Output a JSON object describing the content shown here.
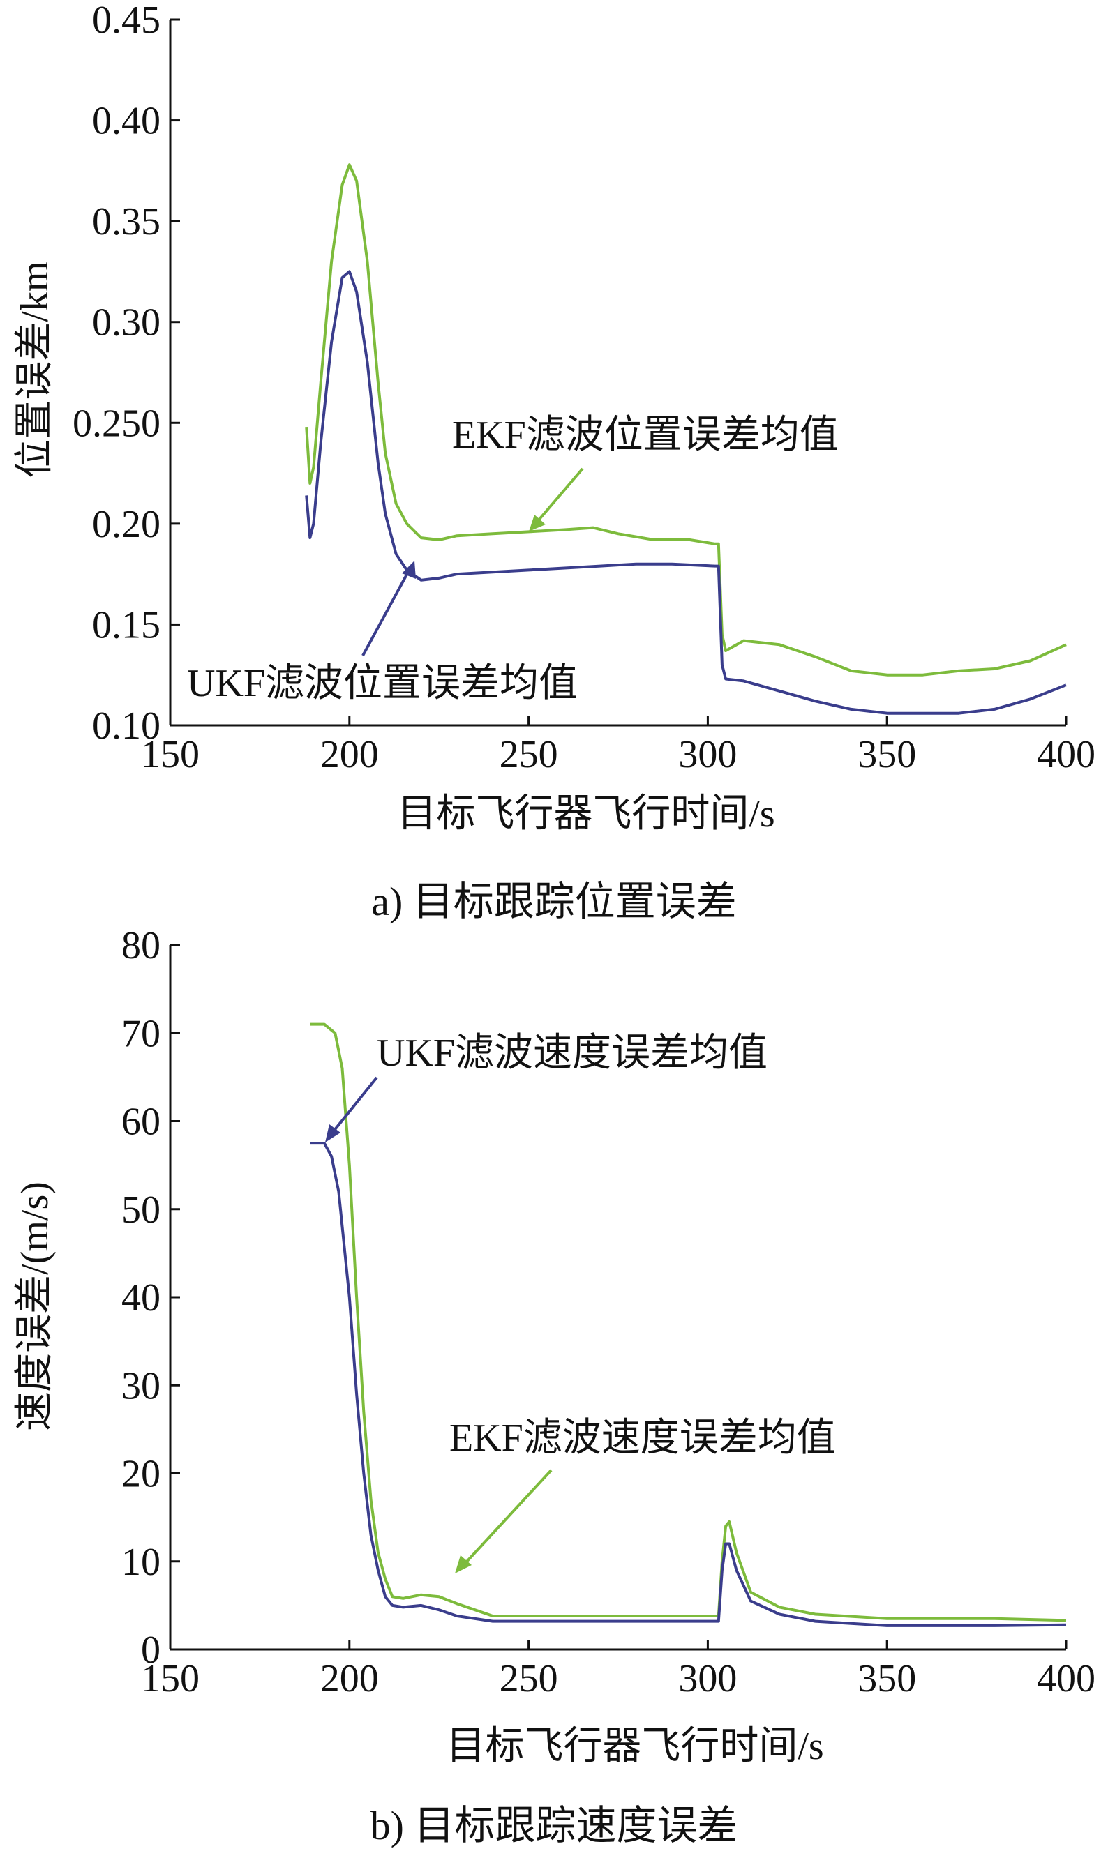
{
  "chart_data": [
    {
      "type": "line",
      "caption": "a) 目标跟踪位置误差",
      "xlabel": "目标飞行器飞行时间/s",
      "ylabel": "位置误差/km",
      "xlim": [
        150,
        400
      ],
      "ylim": [
        0.1,
        0.45
      ],
      "xticks": [
        150,
        200,
        250,
        300,
        350,
        400
      ],
      "xtick_labels": [
        "150",
        "200",
        "250",
        "300",
        "350",
        "400"
      ],
      "yticks": [
        0.1,
        0.15,
        0.2,
        0.25,
        0.3,
        0.35,
        0.4,
        0.45
      ],
      "ytick_labels": [
        "0.10",
        "0.15",
        "0.20",
        "0.250",
        "0.30",
        "0.35",
        "0.40",
        "0.45"
      ],
      "grid": false,
      "series": [
        {
          "name": "EKF滤波位置误差均值",
          "color": "#7dbb3c",
          "x": [
            188,
            189,
            190,
            192,
            195,
            198,
            200,
            202,
            205,
            208,
            210,
            213,
            216,
            220,
            225,
            230,
            240,
            250,
            260,
            268,
            275,
            285,
            295,
            302,
            303,
            304,
            305,
            310,
            320,
            330,
            340,
            350,
            360,
            370,
            380,
            390,
            400
          ],
          "y": [
            0.248,
            0.22,
            0.228,
            0.27,
            0.33,
            0.368,
            0.378,
            0.37,
            0.33,
            0.27,
            0.235,
            0.21,
            0.2,
            0.193,
            0.192,
            0.194,
            0.195,
            0.196,
            0.197,
            0.198,
            0.195,
            0.192,
            0.192,
            0.19,
            0.19,
            0.145,
            0.137,
            0.142,
            0.14,
            0.134,
            0.127,
            0.125,
            0.125,
            0.127,
            0.128,
            0.132,
            0.14
          ]
        },
        {
          "name": "UKF滤波位置误差均值",
          "color": "#3a3d8c",
          "x": [
            188,
            189,
            190,
            192,
            195,
            198,
            200,
            202,
            205,
            208,
            210,
            213,
            216,
            220,
            225,
            230,
            240,
            250,
            260,
            270,
            280,
            290,
            302,
            303,
            304,
            305,
            310,
            320,
            330,
            340,
            350,
            360,
            370,
            380,
            390,
            400
          ],
          "y": [
            0.214,
            0.193,
            0.2,
            0.24,
            0.29,
            0.322,
            0.325,
            0.315,
            0.28,
            0.23,
            0.205,
            0.185,
            0.177,
            0.172,
            0.173,
            0.175,
            0.176,
            0.177,
            0.178,
            0.179,
            0.18,
            0.18,
            0.179,
            0.179,
            0.13,
            0.123,
            0.122,
            0.117,
            0.112,
            0.108,
            0.106,
            0.106,
            0.106,
            0.108,
            0.113,
            0.12
          ]
        }
      ],
      "annotations": [
        {
          "text": "EKF滤波位置误差均值",
          "target_series": "EKF滤波位置误差均值"
        },
        {
          "text": "UKF滤波位置误差均值",
          "target_series": "UKF滤波位置误差均值"
        }
      ]
    },
    {
      "type": "line",
      "caption": "b) 目标跟踪速度误差",
      "xlabel": "目标飞行器飞行时间/s",
      "ylabel": "速度误差/(m/s)",
      "xlim": [
        150,
        400
      ],
      "ylim": [
        0,
        80
      ],
      "xticks": [
        150,
        200,
        250,
        300,
        350,
        400
      ],
      "xtick_labels": [
        "150",
        "200",
        "250",
        "300",
        "350",
        "400"
      ],
      "yticks": [
        0,
        10,
        20,
        30,
        40,
        50,
        60,
        70,
        80
      ],
      "ytick_labels": [
        "0",
        "10",
        "20",
        "30",
        "40",
        "50",
        "60",
        "70",
        "80"
      ],
      "grid": false,
      "series": [
        {
          "name": "EKF滤波速度误差均值",
          "color": "#7dbb3c",
          "x": [
            189,
            193,
            196,
            198,
            200,
            202,
            204,
            206,
            208,
            210,
            212,
            215,
            220,
            225,
            230,
            235,
            240,
            260,
            280,
            300,
            303,
            304,
            305,
            306,
            308,
            312,
            320,
            330,
            350,
            380,
            400
          ],
          "y": [
            71,
            71,
            70,
            66,
            55,
            40,
            27,
            17,
            11,
            8,
            6,
            5.8,
            6.2,
            6,
            5.2,
            4.5,
            3.8,
            3.8,
            3.8,
            3.8,
            3.8,
            10,
            14,
            14.5,
            11,
            6.5,
            4.8,
            4,
            3.5,
            3.5,
            3.3
          ]
        },
        {
          "name": "UKF滤波速度误差均值",
          "color": "#3a3d8c",
          "x": [
            189,
            193,
            195,
            197,
            200,
            202,
            204,
            206,
            208,
            210,
            212,
            215,
            220,
            225,
            230,
            240,
            260,
            280,
            300,
            303,
            304,
            305,
            306,
            308,
            312,
            320,
            330,
            350,
            380,
            400
          ],
          "y": [
            57.5,
            57.5,
            56,
            52,
            40,
            29,
            20,
            13,
            9,
            6,
            5,
            4.8,
            5,
            4.5,
            3.8,
            3.2,
            3.2,
            3.2,
            3.2,
            3.2,
            9,
            12,
            12,
            9,
            5.5,
            4,
            3.2,
            2.7,
            2.7,
            2.8
          ]
        }
      ],
      "annotations": [
        {
          "text": "UKF滤波速度误差均值",
          "target_series": "UKF滤波速度误差均值"
        },
        {
          "text": "EKF滤波速度误差均值",
          "target_series": "EKF滤波速度误差均值"
        }
      ]
    }
  ]
}
